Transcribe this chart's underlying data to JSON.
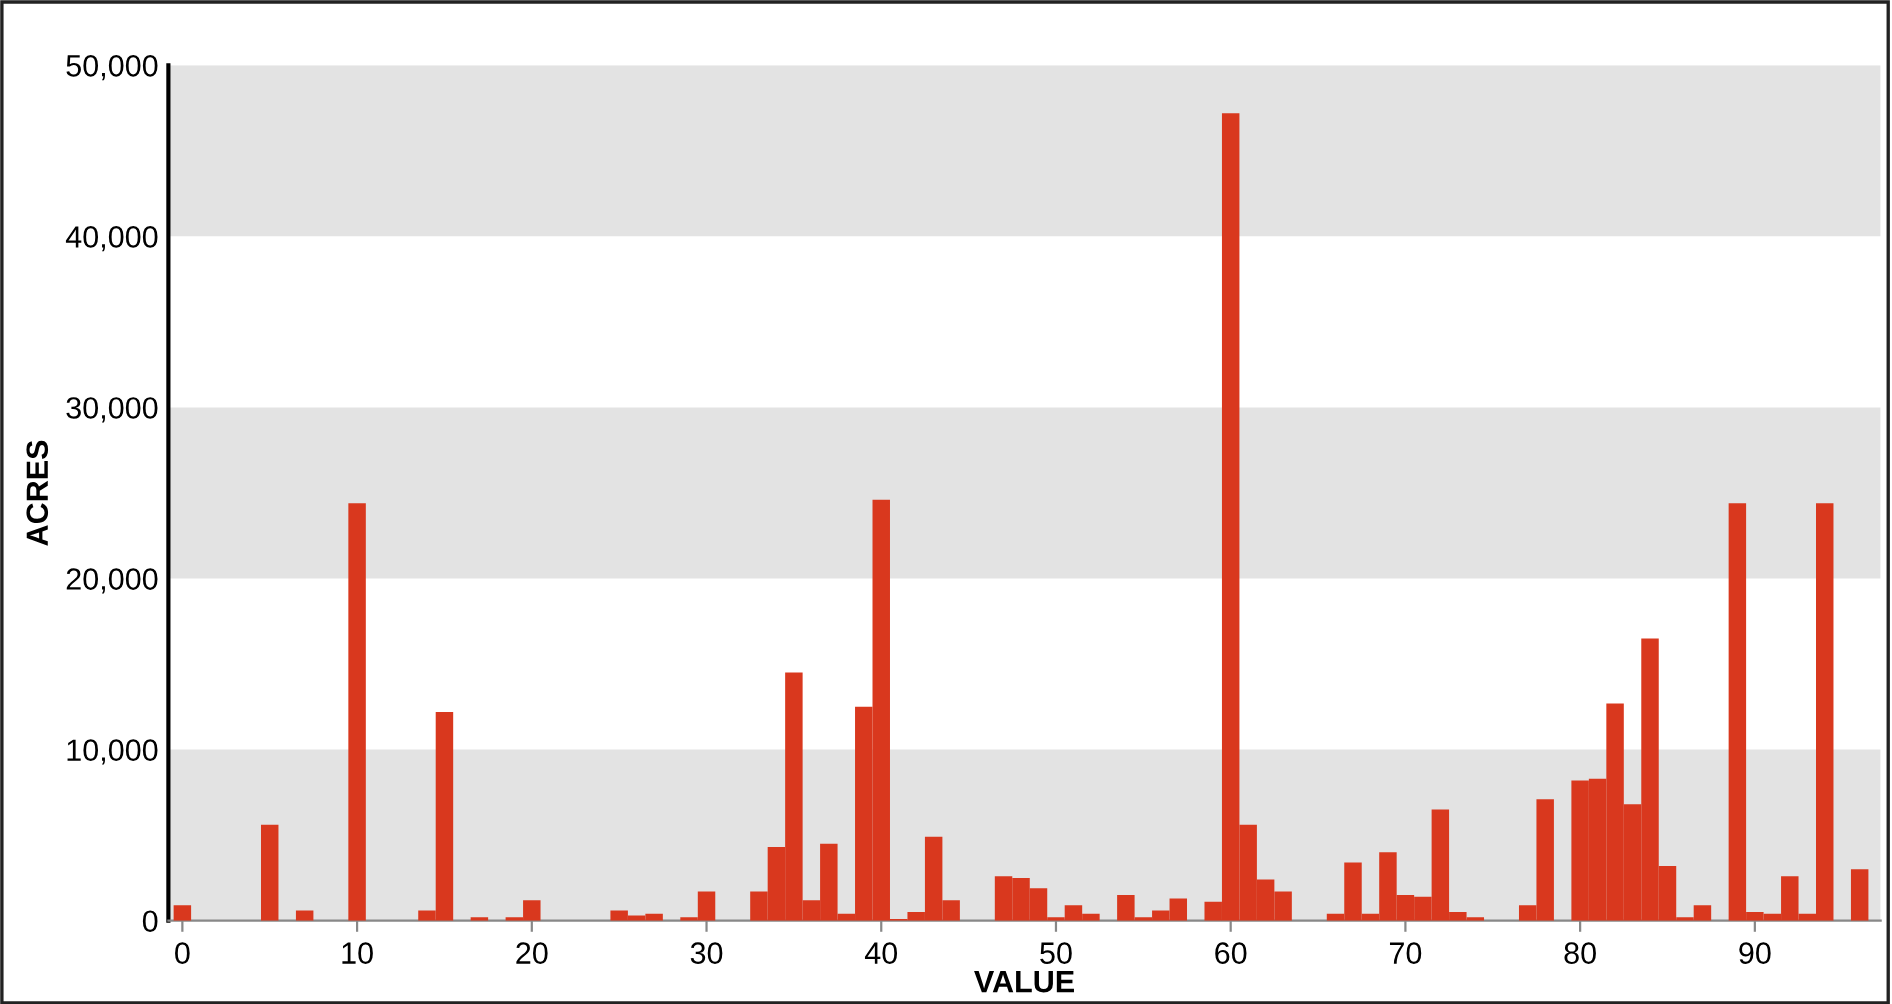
{
  "chart_data": {
    "type": "histogram",
    "xlabel": "VALUE",
    "ylabel": "ACRES",
    "color": "#d9381e",
    "bins": [
      -0.5,
      0.5,
      1.5,
      2.5,
      3.5,
      4.5,
      5.5,
      6.5,
      7.5,
      8.5,
      9.5,
      10.5,
      11.5,
      12.5,
      13.5,
      14.5,
      15.5,
      16.5,
      17.5,
      18.5,
      19.5,
      20.5,
      21.5,
      22.5,
      23.5,
      24.5,
      25.5,
      26.5,
      27.5,
      28.5,
      29.5,
      30.5,
      31.5,
      32.5,
      33.5,
      34.5,
      35.5,
      36.5,
      37.5,
      38.5,
      39.5,
      40.5,
      41.5,
      42.5,
      43.5,
      44.5,
      45.5,
      46.5,
      47.5,
      48.5,
      49.5,
      50.5,
      51.5,
      52.5,
      53.5,
      54.5,
      55.5,
      56.5,
      57.5,
      58.5,
      59.5,
      60.5,
      61.5,
      62.5,
      63.5,
      64.5,
      65.5,
      66.5,
      67.5,
      68.5,
      69.5,
      70.5,
      71.5,
      72.5,
      73.5,
      74.5,
      75.5,
      76.5,
      77.5,
      78.5,
      79.5,
      80.5,
      81.5,
      82.5,
      83.5,
      84.5,
      85.5,
      86.5,
      87.5,
      88.5,
      89.5,
      90.5,
      91.5,
      92.5,
      93.5,
      94.5,
      95.5,
      96.5
    ],
    "values": [
      900,
      0,
      0,
      0,
      0,
      5600,
      0,
      600,
      0,
      0,
      24400,
      0,
      0,
      0,
      600,
      12200,
      0,
      200,
      0,
      200,
      1200,
      0,
      0,
      0,
      0,
      600,
      300,
      400,
      0,
      200,
      1700,
      0,
      0,
      1700,
      4300,
      14500,
      1200,
      4500,
      400,
      12500,
      24600,
      100,
      500,
      4900,
      1200,
      0,
      0,
      2600,
      2500,
      1900,
      200,
      900,
      400,
      0,
      1500,
      200,
      600,
      1300,
      0,
      1100,
      47200,
      5600,
      2400,
      1700,
      0,
      0,
      400,
      3400,
      400,
      4000,
      1500,
      1400,
      6500,
      500,
      200,
      0,
      0,
      900,
      7100,
      0,
      8200,
      8300,
      12700,
      6800,
      16500,
      3200,
      200,
      900,
      0,
      24400,
      500,
      400,
      2600,
      400,
      24400,
      0,
      3000
    ],
    "xlim": [
      -0.8,
      97.2
    ],
    "xticks": [
      0,
      10,
      20,
      30,
      40,
      50,
      60,
      70,
      80,
      90
    ],
    "ylim": [
      0,
      50000
    ],
    "yticks": [
      0,
      {
        "value": 10000,
        "label": "10,000"
      },
      {
        "value": 20000,
        "label": "20,000"
      },
      {
        "value": 30000,
        "label": "30,000"
      },
      {
        "value": 40000,
        "label": "40,000"
      },
      {
        "value": 50000,
        "label": "50,000"
      }
    ],
    "bands": [
      {
        "axis": "y",
        "from": 0,
        "to": 10000,
        "color": "#e3e3e3"
      },
      {
        "axis": "y",
        "from": 20000,
        "to": 30000,
        "color": "#e3e3e3"
      },
      {
        "axis": "y",
        "from": 40000,
        "to": 50000,
        "color": "#e3e3e3"
      }
    ]
  }
}
